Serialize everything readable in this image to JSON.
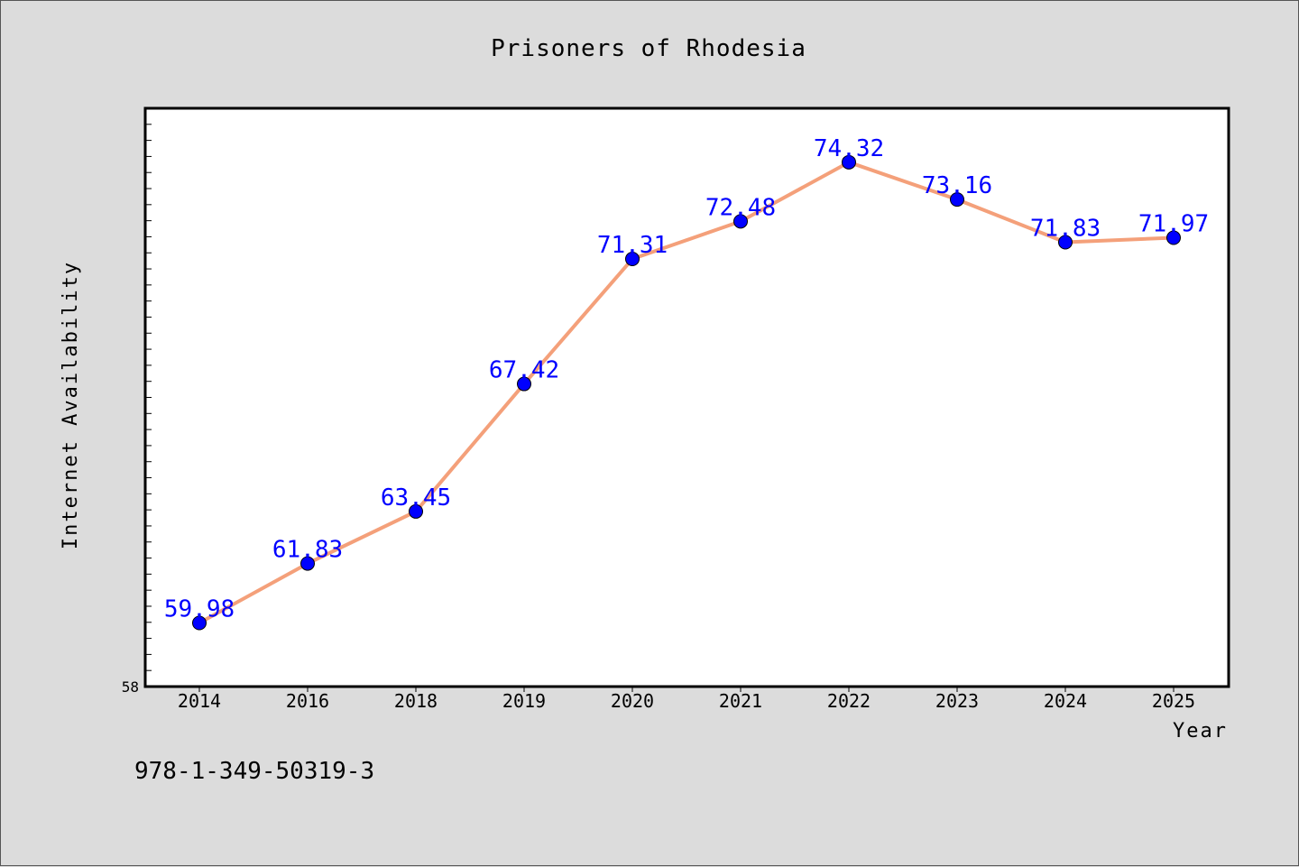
{
  "chart_data": {
    "type": "line",
    "title": "Prisoners of Rhodesia",
    "xlabel": "Year",
    "ylabel": "Internet Availability",
    "categories": [
      "2014",
      "2016",
      "2018",
      "2019",
      "2020",
      "2021",
      "2022",
      "2023",
      "2024",
      "2025"
    ],
    "series": [
      {
        "values": [
          59.98,
          61.83,
          63.45,
          67.42,
          71.31,
          72.48,
          74.32,
          73.16,
          71.83,
          71.97
        ]
      }
    ],
    "value_labels": [
      "59.98",
      "61.83",
      "63.45",
      "67.42",
      "71.31",
      "72.48",
      "74.32",
      "73.16",
      "71.83",
      "71.97"
    ],
    "ylim": [
      58,
      76
    ],
    "y_tick_label": "58",
    "grid": false,
    "line_color": "#f4a07a",
    "marker_color": "#0000ff",
    "label_color": "#0000ff",
    "background_color": "#dcdcdc",
    "plot_background": "#ffffff"
  },
  "footer": {
    "isbn": "978-1-349-50319-3"
  }
}
